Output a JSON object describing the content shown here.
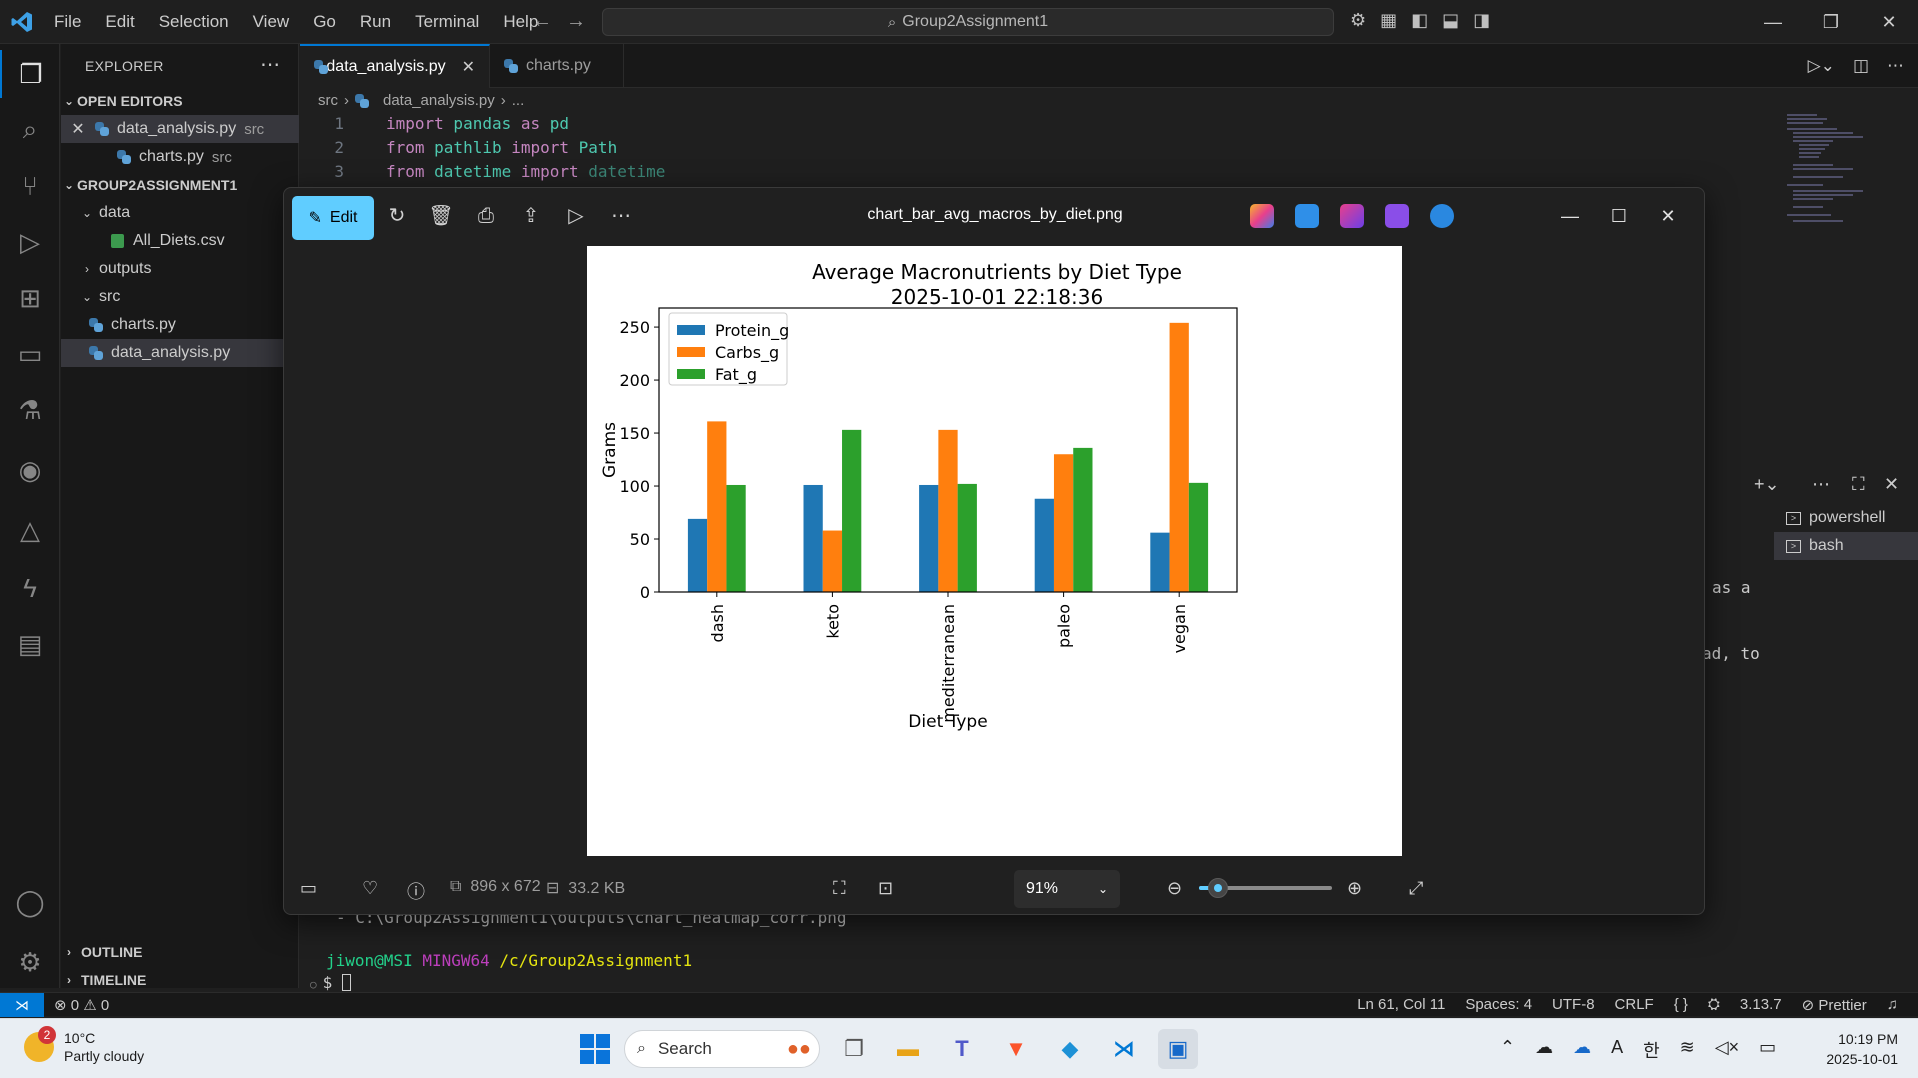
{
  "titlebar": {
    "menu": [
      "File",
      "Edit",
      "Selection",
      "View",
      "Go",
      "Run",
      "Terminal",
      "Help"
    ],
    "search_text": "Group2Assignment1"
  },
  "sidebar": {
    "header": "EXPLORER",
    "open_editors_label": "OPEN EDITORS",
    "open_editors": [
      {
        "name": "data_analysis.py",
        "desc": "src"
      },
      {
        "name": "charts.py",
        "desc": "src"
      }
    ],
    "project_label": "GROUP2ASSIGNMENT1",
    "tree": {
      "data_folder": "data",
      "csv_file": "All_Diets.csv",
      "outputs_folder": "outputs",
      "src_folder": "src",
      "src_files": [
        "charts.py",
        "data_analysis.py"
      ]
    },
    "outline_label": "OUTLINE",
    "timeline_label": "TIMELINE"
  },
  "editor": {
    "tabs": [
      {
        "label": "data_analysis.py"
      },
      {
        "label": "charts.py"
      }
    ],
    "breadcrumbs": {
      "folder": "src",
      "file": "data_analysis.py",
      "tail": "..."
    },
    "code": [
      {
        "num": "1",
        "kw1": "import",
        "a": " pandas ",
        "kw2": "as",
        "b": " pd",
        "c": ""
      },
      {
        "num": "2",
        "kw1": "from",
        "a": " pathlib ",
        "kw2": "import",
        "b": " Path",
        "c": ""
      },
      {
        "num": "3",
        "kw1": "from",
        "a": " datetime ",
        "kw2": "import",
        "b": "",
        "c": " datetime"
      }
    ]
  },
  "terminal": {
    "tabs": [
      "powershell",
      "bash"
    ],
    "frag1": "as a",
    "frag2": "ad, to",
    "path_line": "- C:\\Group2Assignment1\\outputs\\chart_heatmap_corr.png",
    "prompt_user": "jiwon@MSI",
    "prompt_env": "MINGW64",
    "prompt_path": "/c/Group2Assignment1",
    "prompt_symbol": "$"
  },
  "statusbar": {
    "errors": "0",
    "warnings": "0",
    "position": "Ln 61, Col 11",
    "spaces": "Spaces: 4",
    "encoding": "UTF-8",
    "eol": "CRLF",
    "lang": "{ }",
    "version": "3.13.7",
    "prettier": "Prettier"
  },
  "viewer": {
    "edit_label": "Edit",
    "title": "chart_bar_avg_macros_by_diet.png",
    "dimensions": "896 x 672",
    "filesize": "33.2 KB",
    "zoom": "91%",
    "zoom_fraction": 0.14,
    "icons": [
      "rotate-icon",
      "delete-icon",
      "print-icon",
      "share-icon",
      "slideshow-icon",
      "more-icon"
    ]
  },
  "chart_data": {
    "type": "bar",
    "title": "Average Macronutrients by Diet Type",
    "subtitle": "2025-10-01 22:18:36",
    "xlabel": "Diet Type",
    "ylabel": "Grams",
    "categories": [
      "dash",
      "keto",
      "mediterranean",
      "paleo",
      "vegan"
    ],
    "series": [
      {
        "name": "Protein_g",
        "color": "#1f77b4",
        "values": [
          69,
          101,
          101,
          88,
          56
        ]
      },
      {
        "name": "Carbs_g",
        "color": "#ff7f0e",
        "values": [
          161,
          58,
          153,
          130,
          254
        ]
      },
      {
        "name": "Fat_g",
        "color": "#2ca02c",
        "values": [
          101,
          153,
          102,
          136,
          103
        ]
      }
    ],
    "ylim": [
      0,
      268
    ],
    "yticks": [
      0,
      50,
      100,
      150,
      200,
      250
    ],
    "legend": "top-left",
    "grid": false
  },
  "taskbar": {
    "weather_temp": "10°C",
    "weather_desc": "Partly cloudy",
    "weather_badge": "2",
    "search_label": "Search",
    "time": "10:19 PM",
    "date": "2025-10-01"
  }
}
